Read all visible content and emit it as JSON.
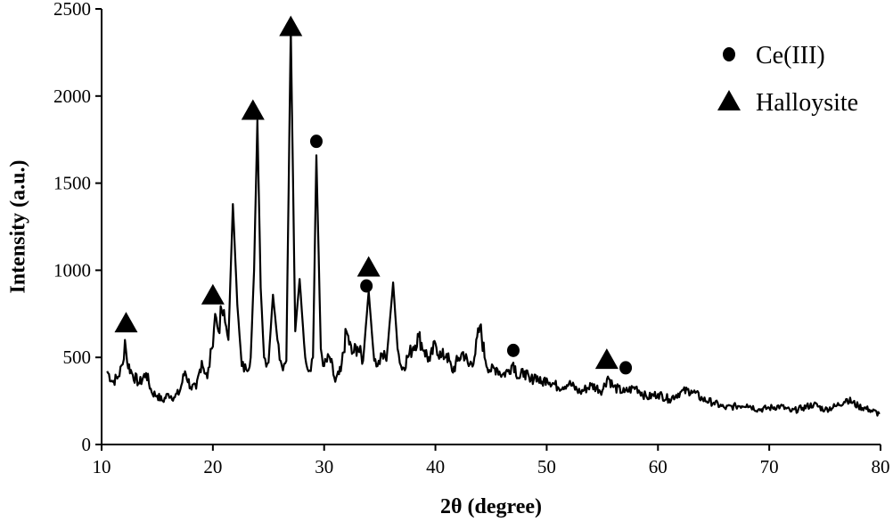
{
  "chart_data": {
    "type": "line",
    "xlabel": "2θ (degree)",
    "ylabel": "Intensity (a.u.)",
    "xlim": [
      10,
      80
    ],
    "ylim": [
      0,
      2500
    ],
    "x_ticks": [
      10,
      20,
      30,
      40,
      50,
      60,
      70,
      80
    ],
    "y_ticks": [
      0,
      500,
      1000,
      1500,
      2000,
      2500
    ],
    "grid": false,
    "legend_position": "top-right",
    "series": [
      {
        "points": [
          [
            10.5,
            420
          ],
          [
            11.0,
            360
          ],
          [
            11.5,
            390
          ],
          [
            11.9,
            460
          ],
          [
            12.1,
            600
          ],
          [
            12.3,
            470
          ],
          [
            12.8,
            400
          ],
          [
            13.4,
            350
          ],
          [
            14.0,
            410
          ],
          [
            14.5,
            300
          ],
          [
            15.0,
            280
          ],
          [
            15.5,
            250
          ],
          [
            16.0,
            290
          ],
          [
            16.5,
            270
          ],
          [
            17.0,
            300
          ],
          [
            17.5,
            420
          ],
          [
            18.0,
            330
          ],
          [
            18.5,
            320
          ],
          [
            19.0,
            480
          ],
          [
            19.5,
            380
          ],
          [
            19.9,
            550
          ],
          [
            20.2,
            750
          ],
          [
            20.5,
            650
          ],
          [
            20.8,
            770
          ],
          [
            21.1,
            700
          ],
          [
            21.4,
            600
          ],
          [
            21.8,
            1380
          ],
          [
            22.2,
            800
          ],
          [
            22.6,
            450
          ],
          [
            23.0,
            430
          ],
          [
            23.4,
            500
          ],
          [
            23.7,
            1000
          ],
          [
            24.0,
            1860
          ],
          [
            24.3,
            900
          ],
          [
            24.6,
            500
          ],
          [
            25.0,
            470
          ],
          [
            25.4,
            860
          ],
          [
            25.8,
            600
          ],
          [
            26.2,
            450
          ],
          [
            26.6,
            480
          ],
          [
            27.0,
            2390
          ],
          [
            27.4,
            650
          ],
          [
            27.8,
            950
          ],
          [
            28.2,
            580
          ],
          [
            28.6,
            420
          ],
          [
            29.0,
            500
          ],
          [
            29.3,
            1660
          ],
          [
            29.7,
            550
          ],
          [
            30.0,
            450
          ],
          [
            30.5,
            500
          ],
          [
            31.0,
            360
          ],
          [
            31.5,
            420
          ],
          [
            32.0,
            650
          ],
          [
            32.5,
            520
          ],
          [
            33.0,
            560
          ],
          [
            33.5,
            480
          ],
          [
            34.0,
            880
          ],
          [
            34.4,
            550
          ],
          [
            34.8,
            450
          ],
          [
            35.2,
            520
          ],
          [
            35.6,
            480
          ],
          [
            36.2,
            930
          ],
          [
            36.6,
            550
          ],
          [
            37.0,
            430
          ],
          [
            37.5,
            500
          ],
          [
            38.0,
            560
          ],
          [
            38.5,
            620
          ],
          [
            39.0,
            540
          ],
          [
            39.5,
            480
          ],
          [
            40.0,
            580
          ],
          [
            40.5,
            500
          ],
          [
            41.0,
            520
          ],
          [
            41.5,
            420
          ],
          [
            42.0,
            480
          ],
          [
            42.5,
            530
          ],
          [
            43.0,
            450
          ],
          [
            43.5,
            500
          ],
          [
            44.0,
            680
          ],
          [
            44.5,
            480
          ],
          [
            45.0,
            420
          ],
          [
            45.5,
            440
          ],
          [
            46.0,
            400
          ],
          [
            46.5,
            420
          ],
          [
            47.0,
            470
          ],
          [
            47.5,
            380
          ],
          [
            48.0,
            420
          ],
          [
            48.5,
            360
          ],
          [
            49.0,
            400
          ],
          [
            49.5,
            350
          ],
          [
            50.0,
            380
          ],
          [
            51.0,
            330
          ],
          [
            52.0,
            350
          ],
          [
            53.0,
            300
          ],
          [
            54.0,
            340
          ],
          [
            55.0,
            310
          ],
          [
            55.5,
            390
          ],
          [
            56.0,
            330
          ],
          [
            57.0,
            300
          ],
          [
            58.0,
            330
          ],
          [
            59.0,
            270
          ],
          [
            60.0,
            290
          ],
          [
            61.0,
            260
          ],
          [
            62.0,
            300
          ],
          [
            63.0,
            310
          ],
          [
            64.0,
            260
          ],
          [
            65.0,
            240
          ],
          [
            66.0,
            210
          ],
          [
            67.0,
            220
          ],
          [
            68.0,
            230
          ],
          [
            69.0,
            200
          ],
          [
            70.0,
            210
          ],
          [
            71.0,
            220
          ],
          [
            72.0,
            190
          ],
          [
            73.0,
            210
          ],
          [
            74.0,
            230
          ],
          [
            75.0,
            200
          ],
          [
            76.0,
            220
          ],
          [
            77.0,
            260
          ],
          [
            78.0,
            220
          ],
          [
            79.0,
            200
          ],
          [
            79.9,
            175
          ]
        ]
      }
    ],
    "legend": [
      {
        "marker": "circle",
        "label": "Ce(III)"
      },
      {
        "marker": "triangle",
        "label": "Halloysite"
      }
    ],
    "markers": [
      {
        "type": "triangle",
        "x": 12.2,
        "y": 700
      },
      {
        "type": "triangle",
        "x": 20.0,
        "y": 860
      },
      {
        "type": "triangle",
        "x": 23.6,
        "y": 1920
      },
      {
        "type": "triangle",
        "x": 27.0,
        "y": 2400
      },
      {
        "type": "triangle",
        "x": 34.0,
        "y": 1020
      },
      {
        "type": "triangle",
        "x": 55.4,
        "y": 490
      },
      {
        "type": "circle",
        "x": 29.3,
        "y": 1740
      },
      {
        "type": "circle",
        "x": 33.8,
        "y": 910
      },
      {
        "type": "circle",
        "x": 47.0,
        "y": 540
      },
      {
        "type": "circle",
        "x": 57.1,
        "y": 440
      }
    ]
  }
}
